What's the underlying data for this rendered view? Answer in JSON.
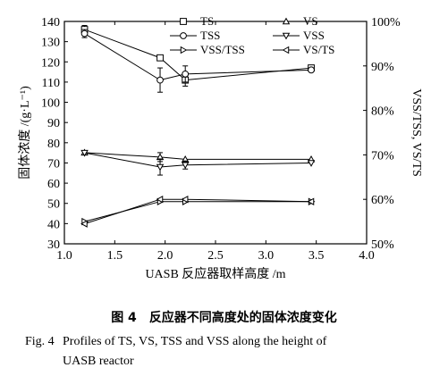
{
  "chart_data": {
    "type": "line",
    "xlabel": "UASB 反应器取样高度 /m",
    "ylabel_left": "固体浓度 /(g·L⁻¹)",
    "ylabel_right": "VSS/TSS, VS/TS",
    "xlim": [
      1.0,
      4.0
    ],
    "ylim_left": [
      30,
      140
    ],
    "ylim_right": [
      50,
      100
    ],
    "x_ticks": [
      "1.0",
      "1.5",
      "2.0",
      "2.5",
      "3.0",
      "3.5",
      "4.0"
    ],
    "y_left_ticks": [
      "30",
      "40",
      "50",
      "60",
      "70",
      "80",
      "90",
      "100",
      "110",
      "120",
      "130",
      "140"
    ],
    "y_right_ticks": [
      "50%",
      "60%",
      "70%",
      "80%",
      "90%",
      "100%"
    ],
    "grid": false,
    "legend_position": "top-right",
    "series": [
      {
        "name": "TS",
        "axis": "left",
        "marker": "square",
        "x": [
          1.2,
          1.95,
          2.2,
          3.45
        ],
        "y": [
          136,
          122,
          111,
          117
        ],
        "err": [
          2,
          1,
          3,
          1
        ]
      },
      {
        "name": "TSS",
        "axis": "left",
        "marker": "circle",
        "x": [
          1.2,
          1.95,
          2.2,
          3.45
        ],
        "y": [
          134,
          111,
          114,
          116
        ],
        "err": [
          2,
          6,
          4,
          1
        ]
      },
      {
        "name": "VSS/TSS",
        "axis": "right",
        "marker": "triangle-right",
        "x": [
          1.2,
          1.95,
          2.2,
          3.45
        ],
        "y": [
          55,
          59.5,
          59.5,
          59.5
        ],
        "err": [
          0,
          0,
          0,
          0
        ]
      },
      {
        "name": "VS",
        "axis": "right",
        "marker": "triangle-up",
        "x": [
          1.2,
          1.95,
          2.2,
          3.45
        ],
        "y": [
          70.5,
          69.5,
          69,
          69
        ],
        "err": [
          0,
          1,
          0,
          0
        ]
      },
      {
        "name": "VSS",
        "axis": "left",
        "marker": "triangle-down",
        "x": [
          1.2,
          1.95,
          2.2,
          3.45
        ],
        "y": [
          75,
          68,
          69,
          70
        ],
        "err": [
          0,
          4,
          2,
          0
        ]
      },
      {
        "name": "VS/TS",
        "axis": "right",
        "marker": "triangle-left",
        "x": [
          1.2,
          1.95,
          2.2,
          3.45
        ],
        "y": [
          54.5,
          60,
          60,
          59.5
        ],
        "err": [
          0,
          0,
          0,
          0
        ]
      }
    ]
  },
  "caption": {
    "cn_number": "图 4",
    "cn_text": "反应器不同高度处的固体浓度变化",
    "en_number": "Fig. 4",
    "en_line1": "Profiles of TS, VS, TSS and VSS along the height of",
    "en_line2": "UASB reactor"
  }
}
